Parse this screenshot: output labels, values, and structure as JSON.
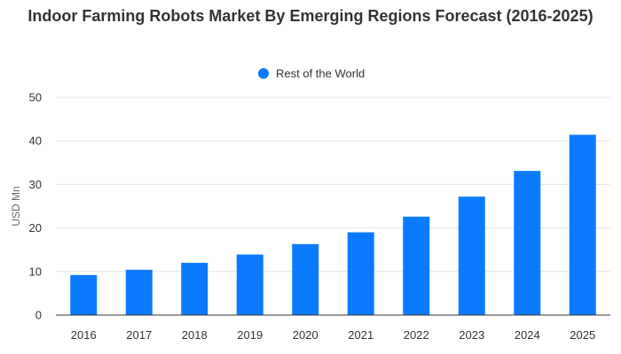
{
  "chart_data": {
    "type": "bar",
    "title": "Indoor Farming Robots Market By Emerging Regions Forecast (2016-2025)",
    "xlabel": "",
    "ylabel": "USD Mn",
    "ylim": [
      0,
      50
    ],
    "yticks": [
      0,
      10,
      20,
      30,
      40,
      50
    ],
    "grid": true,
    "legend_position": "top-center",
    "categories": [
      "2016",
      "2017",
      "2018",
      "2019",
      "2020",
      "2021",
      "2022",
      "2023",
      "2024",
      "2025"
    ],
    "series": [
      {
        "name": "Rest of the World",
        "color": "#0A7BFF",
        "values": [
          9.2,
          10.4,
          12.0,
          13.9,
          16.3,
          19.0,
          22.6,
          27.2,
          33.1,
          41.4
        ]
      }
    ]
  }
}
